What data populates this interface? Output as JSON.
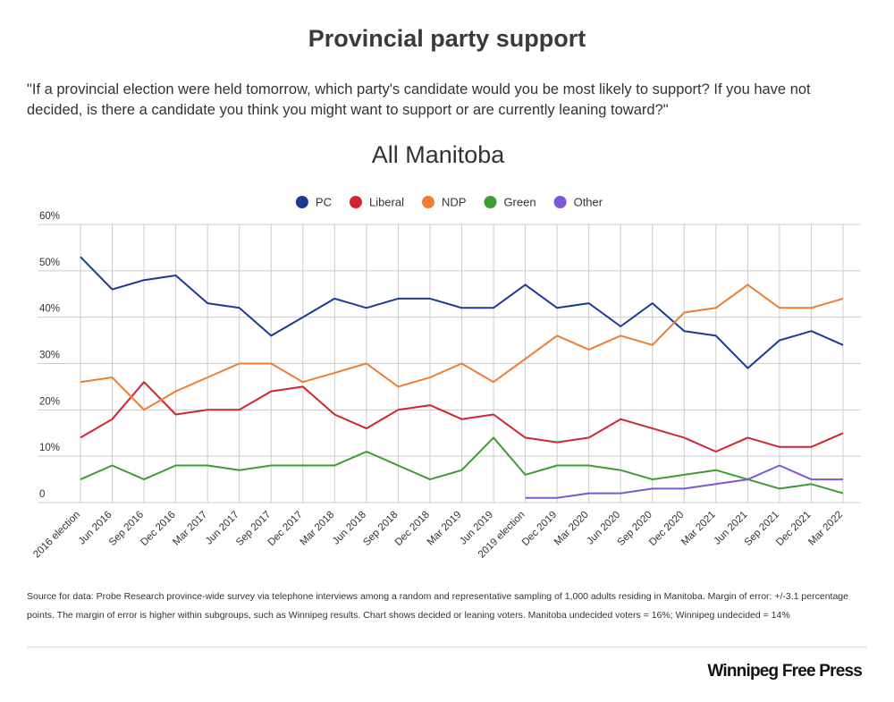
{
  "title": "Provincial party support",
  "subtitle": "\"If a provincial election were held tomorrow, which party's candidate would you be most likely to support? If you have not decided, is there a candidate you think you might want to support or are currently leaning toward?\"",
  "note": "Source for data:  Probe Research province-wide survey via telephone interviews among a random and representative sampling of 1,000 adults residing in Manitoba.  Margin of error: +/-3.1 percentage points.  The margin of error is higher within subgroups, such as Winnipeg results.  Chart shows decided or leaning voters. Manitoba undecided voters = 16%; Winnipeg undecided = 14%",
  "brand": "Winnipeg Free Press",
  "chart_data": {
    "type": "line",
    "title": "All Manitoba",
    "categories": [
      "2016 election",
      "Jun 2016",
      "Sep 2016",
      "Dec 2016",
      "Mar 2017",
      "Jun 2017",
      "Sep 2017",
      "Dec 2017",
      "Mar 2018",
      "Jun 2018",
      "Sep 2018",
      "Dec 2018",
      "Mar 2019",
      "Jun 2019",
      "2019 election",
      "Dec 2019",
      "Mar 2020",
      "Jun 2020",
      "Sep 2020",
      "Dec 2020",
      "Mar 2021",
      "Jun 2021",
      "Sep 2021",
      "Dec 2021",
      "Mar 2022"
    ],
    "series": [
      {
        "name": "PC",
        "color": "#1c3a94",
        "values": [
          53,
          46,
          48,
          49,
          43,
          42,
          36,
          40,
          44,
          42,
          44,
          44,
          42,
          42,
          47,
          42,
          43,
          38,
          43,
          37,
          36,
          29,
          35,
          37,
          34
        ]
      },
      {
        "name": "Liberal",
        "color": "#d2252f",
        "values": [
          14,
          18,
          26,
          19,
          20,
          20,
          24,
          25,
          19,
          16,
          20,
          21,
          18,
          19,
          14,
          13,
          14,
          18,
          16,
          14,
          11,
          14,
          12,
          12,
          15
        ]
      },
      {
        "name": "NDP",
        "color": "#ef7d32",
        "values": [
          26,
          27,
          20,
          24,
          27,
          30,
          30,
          26,
          28,
          30,
          25,
          27,
          30,
          26,
          31,
          36,
          33,
          36,
          34,
          41,
          42,
          47,
          42,
          42,
          44
        ]
      },
      {
        "name": "Green",
        "color": "#3e9b36",
        "values": [
          5,
          8,
          5,
          8,
          8,
          7,
          8,
          8,
          8,
          11,
          8,
          5,
          7,
          14,
          6,
          8,
          8,
          7,
          5,
          6,
          7,
          5,
          3,
          4,
          2
        ]
      },
      {
        "name": "Other",
        "color": "#7c58d6",
        "values": [
          null,
          null,
          null,
          null,
          null,
          null,
          null,
          null,
          null,
          null,
          null,
          null,
          null,
          null,
          1,
          1,
          2,
          2,
          3,
          3,
          4,
          5,
          8,
          5,
          5
        ]
      }
    ],
    "ylim": [
      0,
      60
    ],
    "yticks": [
      0,
      {
        "value": 10,
        "label": "10%"
      },
      {
        "value": 20,
        "label": "20%"
      },
      {
        "value": 30,
        "label": "30%"
      },
      {
        "value": 40,
        "label": "40%"
      },
      {
        "value": 50,
        "label": "50%"
      },
      {
        "value": 60,
        "label": "60%"
      }
    ],
    "grid": true,
    "legend": "top"
  }
}
